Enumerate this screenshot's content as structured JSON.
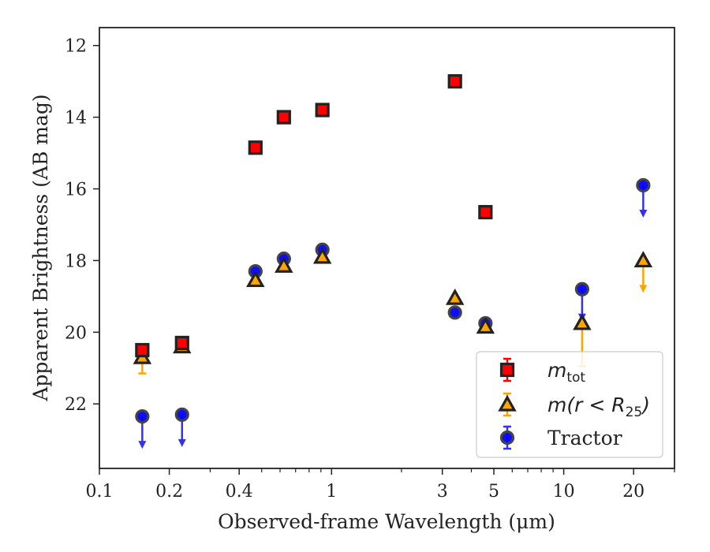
{
  "chart_data": {
    "type": "scatter",
    "xlabel": "Observed-frame Wavelength (μm)",
    "ylabel": "Apparent Brightness (AB mag)",
    "xscale": "log",
    "xlim": [
      0.1,
      30
    ],
    "ylim": [
      23.8,
      11.5
    ],
    "y_inverted": true,
    "xticks": [
      {
        "value": 0.1,
        "label": "0.1"
      },
      {
        "value": 0.2,
        "label": "0.2"
      },
      {
        "value": 0.4,
        "label": "0.4"
      },
      {
        "value": 1,
        "label": "1"
      },
      {
        "value": 3,
        "label": "3"
      },
      {
        "value": 5,
        "label": "5"
      },
      {
        "value": 10,
        "label": "10"
      },
      {
        "value": 20,
        "label": "20"
      }
    ],
    "xminor": [
      0.3,
      0.5,
      0.6,
      0.7,
      0.8,
      0.9,
      2,
      4,
      6,
      7,
      8,
      9,
      30
    ],
    "yticks": [
      {
        "value": 12,
        "label": "12"
      },
      {
        "value": 14,
        "label": "14"
      },
      {
        "value": 16,
        "label": "16"
      },
      {
        "value": 18,
        "label": "18"
      },
      {
        "value": 20,
        "label": "20"
      },
      {
        "value": 22,
        "label": "22"
      }
    ],
    "grid": false,
    "legend_position": "bottom-right",
    "series": [
      {
        "name": "m_tot",
        "legend_main": "m",
        "legend_sub": "tot",
        "marker": "square",
        "color": "#ff0000",
        "edge_color": "#222222",
        "points": [
          {
            "x": 0.153,
            "y": 20.5
          },
          {
            "x": 0.227,
            "y": 20.3
          },
          {
            "x": 0.47,
            "y": 14.85
          },
          {
            "x": 0.623,
            "y": 14.0
          },
          {
            "x": 0.913,
            "y": 13.8
          },
          {
            "x": 3.4,
            "y": 13.0
          },
          {
            "x": 4.6,
            "y": 16.65
          }
        ]
      },
      {
        "name": "m(r < R25)",
        "legend_main": "m(r < R",
        "legend_sub": "25",
        "legend_tail": ")",
        "marker": "triangle",
        "color": "#ffa500",
        "edge_color": "#222222",
        "points": [
          {
            "x": 0.153,
            "y": 20.7,
            "err_low": 0.45
          },
          {
            "x": 0.227,
            "y": 20.4
          },
          {
            "x": 0.47,
            "y": 18.55
          },
          {
            "x": 0.623,
            "y": 18.15
          },
          {
            "x": 0.913,
            "y": 17.9
          },
          {
            "x": 3.4,
            "y": 19.05
          },
          {
            "x": 4.6,
            "y": 19.85
          },
          {
            "x": 12.0,
            "y": 19.75,
            "err_low": 1.2
          },
          {
            "x": 22.0,
            "y": 18.0,
            "upper_limit": true
          }
        ]
      },
      {
        "name": "Tractor",
        "legend_main": "Tractor",
        "marker": "circle",
        "color": "#0000ff",
        "edge_color": "#444444",
        "points": [
          {
            "x": 0.153,
            "y": 22.35,
            "upper_limit": true
          },
          {
            "x": 0.227,
            "y": 22.3,
            "upper_limit": true
          },
          {
            "x": 0.47,
            "y": 18.3
          },
          {
            "x": 0.623,
            "y": 17.95
          },
          {
            "x": 0.913,
            "y": 17.7
          },
          {
            "x": 3.4,
            "y": 19.45
          },
          {
            "x": 4.6,
            "y": 19.75
          },
          {
            "x": 12.0,
            "y": 18.8,
            "upper_limit": true
          },
          {
            "x": 22.0,
            "y": 15.9,
            "upper_limit": true
          }
        ]
      }
    ]
  }
}
